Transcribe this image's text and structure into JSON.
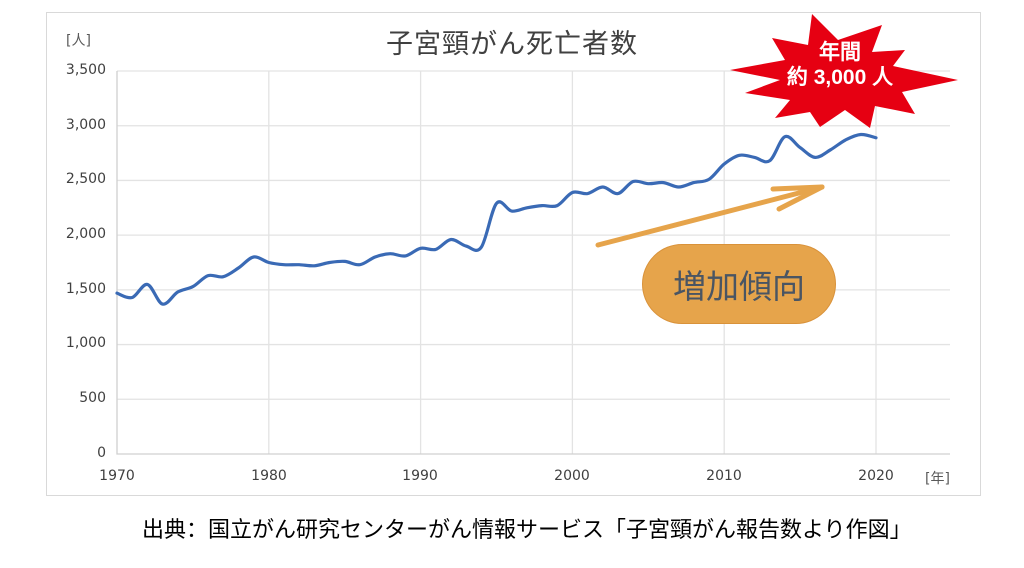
{
  "chart_data": {
    "type": "line",
    "title": "子宮頸がん死亡者数",
    "xlabel": "[年]",
    "ylabel": "[人]",
    "xlim": [
      1970,
      2025
    ],
    "ylim": [
      0,
      3500
    ],
    "grid": true,
    "x_ticks": [
      "1970",
      "1980",
      "1990",
      "2000",
      "2010",
      "2020"
    ],
    "y_ticks": [
      "0",
      "500",
      "1,000",
      "1,500",
      "2,000",
      "2,500",
      "3,000",
      "3,500"
    ],
    "x": [
      1970,
      1971,
      1972,
      1973,
      1974,
      1975,
      1976,
      1977,
      1978,
      1979,
      1980,
      1981,
      1982,
      1983,
      1984,
      1985,
      1986,
      1987,
      1988,
      1989,
      1990,
      1991,
      1992,
      1993,
      1994,
      1995,
      1996,
      1997,
      1998,
      1999,
      2000,
      2001,
      2002,
      2003,
      2004,
      2005,
      2006,
      2007,
      2008,
      2009,
      2010,
      2011,
      2012,
      2013,
      2014,
      2015,
      2016,
      2017,
      2018,
      2019,
      2020
    ],
    "series": [
      {
        "name": "子宮頸がん死亡者数",
        "color": "#3a6ab5",
        "values": [
          1470,
          1430,
          1550,
          1370,
          1480,
          1530,
          1630,
          1620,
          1700,
          1800,
          1750,
          1730,
          1730,
          1720,
          1750,
          1760,
          1730,
          1800,
          1830,
          1810,
          1880,
          1870,
          1960,
          1900,
          1890,
          2290,
          2220,
          2250,
          2270,
          2270,
          2390,
          2380,
          2440,
          2380,
          2490,
          2470,
          2480,
          2440,
          2480,
          2510,
          2650,
          2730,
          2710,
          2680,
          2900,
          2800,
          2710,
          2780,
          2870,
          2920,
          2890
        ]
      }
    ],
    "annotations": [
      {
        "type": "starburst",
        "text_line1": "年間",
        "text_line2": "約 3,000 人",
        "color": "#e60012"
      },
      {
        "type": "arrow",
        "direction": "up-right",
        "color": "#e6a44b"
      },
      {
        "type": "label",
        "text": "増加傾向",
        "color": "#e6a44b"
      }
    ],
    "source": "出典：国立がん研究センターがん情報サービス「子宮頸がん報告数より作図」"
  },
  "labels": {
    "title": "子宮頸がん死亡者数",
    "unit_y": "[人]",
    "unit_x": "[年]",
    "burst_line1": "年間",
    "burst_line2": "約 3,000 人",
    "trend_label": "増加傾向",
    "source": "出典：国立がん研究センターがん情報サービス「子宮頸がん報告数より作図」"
  },
  "y_ticks": [
    "3,500",
    "3,000",
    "2,500",
    "2,000",
    "1,500",
    "1,000",
    "500",
    "0"
  ],
  "x_ticks": [
    "1970",
    "1980",
    "1990",
    "2000",
    "2010",
    "2020"
  ]
}
